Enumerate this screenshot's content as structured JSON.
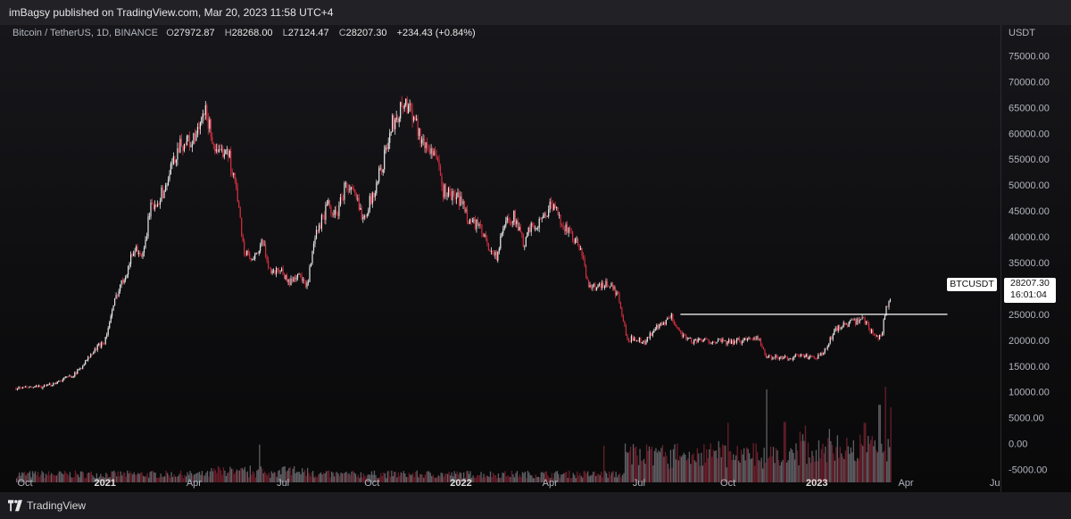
{
  "header": {
    "published_text": "imBagsy published on TradingView.com, Mar 20, 2023 11:58 UTC+4"
  },
  "legend": {
    "symbol": "Bitcoin / TetherUS, 1D, BINANCE",
    "open_label": "O",
    "open": "27972.87",
    "high_label": "H",
    "high": "28268.00",
    "low_label": "L",
    "low": "27124.47",
    "close_label": "C",
    "close": "28207.30",
    "change": "+234.43 (+0.84%)"
  },
  "price_badge": {
    "symbol": "BTCUSDT",
    "price": "28207.30",
    "countdown": "16:01:04"
  },
  "footer": {
    "brand": "TradingView"
  },
  "colors": {
    "up": "#e8e8e8",
    "down": "#d32f3f",
    "background": "#0e0e10",
    "axis_text": "#b2b5be"
  },
  "chart_data": {
    "type": "candlestick",
    "title": "Bitcoin / TetherUS, 1D, BINANCE",
    "y_axis_unit": "USDT",
    "y_ticks": [
      "-5000.00",
      "0.00",
      "5000.00",
      "10000.00",
      "15000.00",
      "20000.00",
      "25000.00",
      "30000.00",
      "35000.00",
      "40000.00",
      "45000.00",
      "50000.00",
      "55000.00",
      "60000.00",
      "65000.00",
      "70000.00",
      "75000.00"
    ],
    "ylim": [
      -7500,
      77500
    ],
    "x_ticks": [
      {
        "label": "Oct",
        "x": 0
      },
      {
        "label": "2021",
        "x": 3
      },
      {
        "label": "Apr",
        "x": 6
      },
      {
        "label": "Jul",
        "x": 9
      },
      {
        "label": "Oct",
        "x": 12
      },
      {
        "label": "2022",
        "x": 15
      },
      {
        "label": "Apr",
        "x": 18
      },
      {
        "label": "Jul",
        "x": 21
      },
      {
        "label": "Oct",
        "x": 24
      },
      {
        "label": "2023",
        "x": 27
      },
      {
        "label": "Apr",
        "x": 30
      },
      {
        "label": "Ju",
        "x": 33
      }
    ],
    "xlim": [
      -0.3,
      33.1
    ],
    "price_path": [
      [
        0,
        10700
      ],
      [
        1,
        11000
      ],
      [
        2,
        13500
      ],
      [
        2.8,
        19000
      ],
      [
        3,
        20000
      ],
      [
        3.4,
        29000
      ],
      [
        3.7,
        33000
      ],
      [
        4,
        38000
      ],
      [
        4.3,
        36000
      ],
      [
        4.5,
        45000
      ],
      [
        5,
        49000
      ],
      [
        5.5,
        58000
      ],
      [
        6,
        58500
      ],
      [
        6.4,
        64000
      ],
      [
        6.8,
        55000
      ],
      [
        7.1,
        58000
      ],
      [
        7.4,
        50000
      ],
      [
        7.7,
        37000
      ],
      [
        8,
        35000
      ],
      [
        8.3,
        39000
      ],
      [
        8.6,
        33000
      ],
      [
        8.9,
        34000
      ],
      [
        9.2,
        31000
      ],
      [
        9.5,
        33000
      ],
      [
        9.8,
        30000
      ],
      [
        10.1,
        40000
      ],
      [
        10.5,
        46000
      ],
      [
        10.8,
        44000
      ],
      [
        11.1,
        50000
      ],
      [
        11.4,
        48000
      ],
      [
        11.7,
        44000
      ],
      [
        12,
        47500
      ],
      [
        12.4,
        55000
      ],
      [
        12.7,
        62000
      ],
      [
        13.1,
        66000
      ],
      [
        13.4,
        64000
      ],
      [
        13.7,
        58000
      ],
      [
        14.1,
        56500
      ],
      [
        14.4,
        49000
      ],
      [
        14.7,
        48000
      ],
      [
        15,
        47000
      ],
      [
        15.3,
        43000
      ],
      [
        15.6,
        42000
      ],
      [
        15.9,
        38500
      ],
      [
        16.2,
        36000
      ],
      [
        16.5,
        43000
      ],
      [
        16.8,
        44000
      ],
      [
        17.1,
        38500
      ],
      [
        17.4,
        42000
      ],
      [
        17.7,
        43000
      ],
      [
        18,
        46000
      ],
      [
        18.3,
        44000
      ],
      [
        18.6,
        41000
      ],
      [
        19,
        38000
      ],
      [
        19.3,
        31000
      ],
      [
        19.6,
        30000
      ],
      [
        20,
        31000
      ],
      [
        20.3,
        28500
      ],
      [
        20.6,
        20000
      ],
      [
        20.9,
        20500
      ],
      [
        21.2,
        19500
      ],
      [
        21.5,
        22000
      ],
      [
        21.8,
        23000
      ],
      [
        22.1,
        24500
      ],
      [
        22.4,
        21500
      ],
      [
        22.7,
        20000
      ],
      [
        23,
        19800
      ],
      [
        23.5,
        20000
      ],
      [
        24,
        19500
      ],
      [
        24.5,
        20000
      ],
      [
        25,
        20800
      ],
      [
        25.3,
        16500
      ],
      [
        25.7,
        16800
      ],
      [
        26,
        16500
      ],
      [
        26.4,
        17000
      ],
      [
        26.7,
        16800
      ],
      [
        27,
        16600
      ],
      [
        27.3,
        18000
      ],
      [
        27.6,
        22000
      ],
      [
        27.9,
        23000
      ],
      [
        28.3,
        23500
      ],
      [
        28.6,
        24000
      ],
      [
        28.8,
        22000
      ],
      [
        29.1,
        20500
      ],
      [
        29.2,
        21500
      ],
      [
        29.3,
        25500
      ],
      [
        29.4,
        27100
      ],
      [
        29.5,
        28200
      ]
    ],
    "volume_spikes": [
      {
        "x": 8.2,
        "value": -200
      },
      {
        "x": 19.8,
        "value": -400
      },
      {
        "x": 20.8,
        "value": -100
      },
      {
        "x": 24,
        "value": 4000
      },
      {
        "x": 25.3,
        "value": 10500
      },
      {
        "x": 25.9,
        "value": 4200
      },
      {
        "x": 26.6,
        "value": 3500
      },
      {
        "x": 28.6,
        "value": 4000
      },
      {
        "x": 29.1,
        "value": 7500
      },
      {
        "x": 29.3,
        "value": 11000
      },
      {
        "x": 29.5,
        "value": 7000
      }
    ],
    "horizontal_level": {
      "value": 25000,
      "from_x": 22.4,
      "to_x": 31.4
    },
    "last_price": 28207.3
  }
}
